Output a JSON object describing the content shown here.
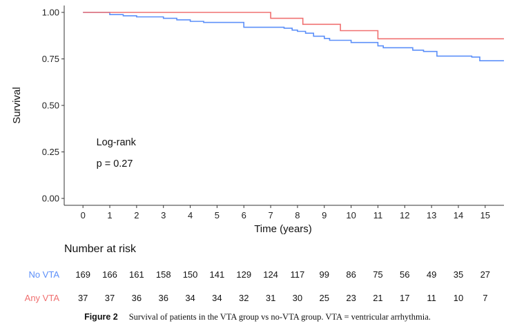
{
  "chart_data": {
    "type": "line",
    "subtype": "kaplan-meier step",
    "xlabel": "Time (years)",
    "ylabel": "Survival",
    "xlim": [
      -0.7,
      15.7
    ],
    "ylim": [
      0,
      1
    ],
    "x_ticks": [
      0,
      1,
      2,
      3,
      4,
      5,
      6,
      7,
      8,
      9,
      10,
      11,
      12,
      13,
      14,
      15
    ],
    "y_ticks": [
      0.0,
      0.25,
      0.5,
      0.75,
      1.0
    ],
    "y_tick_labels": [
      "0.00",
      "0.25",
      "0.50",
      "0.75",
      "1.00"
    ],
    "annotation_lines": [
      "Log-rank",
      "p = 0.27"
    ],
    "annotation_pos": [
      0.5,
      0.285
    ],
    "series": [
      {
        "name": "No VTA",
        "color": "#5b8ff9",
        "steps": [
          [
            0,
            1.0
          ],
          [
            1,
            0.988
          ],
          [
            1.5,
            0.982
          ],
          [
            2,
            0.976
          ],
          [
            3,
            0.968
          ],
          [
            3.5,
            0.96
          ],
          [
            4,
            0.952
          ],
          [
            4.5,
            0.946
          ],
          [
            6,
            0.92
          ],
          [
            7.5,
            0.915
          ],
          [
            7.8,
            0.905
          ],
          [
            8,
            0.898
          ],
          [
            8.3,
            0.888
          ],
          [
            8.6,
            0.872
          ],
          [
            9,
            0.86
          ],
          [
            9.2,
            0.85
          ],
          [
            10,
            0.838
          ],
          [
            11,
            0.82
          ],
          [
            11.2,
            0.81
          ],
          [
            12.3,
            0.797
          ],
          [
            12.7,
            0.79
          ],
          [
            13.2,
            0.765
          ],
          [
            14.5,
            0.76
          ],
          [
            14.8,
            0.74
          ],
          [
            15.7,
            0.74
          ]
        ]
      },
      {
        "name": "Any VTA",
        "color": "#f07070",
        "steps": [
          [
            0,
            1.0
          ],
          [
            7,
            0.968
          ],
          [
            8.2,
            0.936
          ],
          [
            9.6,
            0.902
          ],
          [
            11,
            0.858
          ],
          [
            15.7,
            0.858
          ]
        ]
      }
    ]
  },
  "risk_table": {
    "title": "Number at risk",
    "rows": [
      {
        "label": "No VTA",
        "color": "#5b8ff9",
        "values": [
          169,
          166,
          161,
          158,
          150,
          141,
          129,
          124,
          117,
          99,
          86,
          75,
          56,
          49,
          35,
          27
        ]
      },
      {
        "label": "Any VTA",
        "color": "#f07070",
        "values": [
          37,
          37,
          36,
          36,
          34,
          34,
          32,
          31,
          30,
          25,
          23,
          21,
          17,
          11,
          10,
          7
        ]
      }
    ]
  },
  "caption": {
    "label": "Figure 2",
    "text": "Survival of patients in the VTA group vs no-VTA group. VTA = ventricular arrhythmia."
  }
}
